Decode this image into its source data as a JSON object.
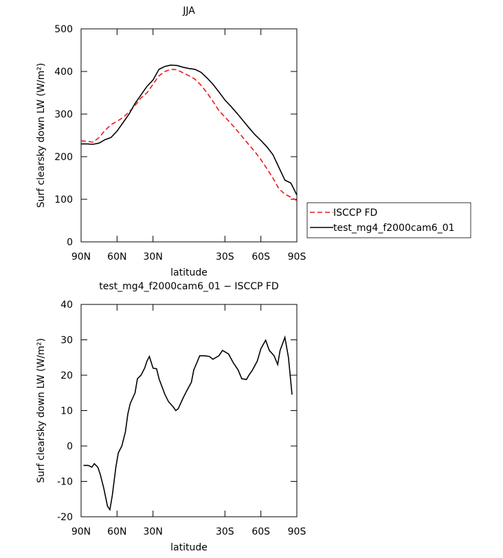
{
  "chart_data": [
    {
      "type": "line",
      "title": "JJA",
      "xlabel": "latitude",
      "ylabel": "Surf clearsky down LW (W/m²)",
      "xlim": [
        90,
        -90
      ],
      "ylim": [
        0,
        500
      ],
      "xticks": [
        {
          "value": 90,
          "label": "90N"
        },
        {
          "value": 60,
          "label": "60N"
        },
        {
          "value": 30,
          "label": "30N"
        },
        {
          "value": -30,
          "label": "30S"
        },
        {
          "value": -60,
          "label": "60S"
        },
        {
          "value": -90,
          "label": "90S"
        }
      ],
      "yticks": [
        0,
        100,
        200,
        300,
        400,
        500
      ],
      "legend": "right",
      "x": [
        90,
        85,
        80,
        75,
        70,
        65,
        60,
        55,
        50,
        45,
        40,
        35,
        30,
        25,
        20,
        15,
        10,
        5,
        0,
        -5,
        -10,
        -15,
        -20,
        -25,
        -30,
        -35,
        -40,
        -45,
        -50,
        -55,
        -60,
        -65,
        -70,
        -75,
        -80,
        -85,
        -90
      ],
      "series": [
        {
          "name": "ISCCP FD",
          "color": "#e8161b",
          "linestyle": "dashed",
          "values": [
            237,
            236,
            234,
            245,
            262,
            275,
            283,
            292,
            305,
            320,
            338,
            350,
            370,
            390,
            400,
            405,
            404,
            397,
            390,
            382,
            368,
            350,
            330,
            308,
            293,
            278,
            262,
            245,
            228,
            212,
            193,
            172,
            150,
            125,
            112,
            105,
            97
          ]
        },
        {
          "name": "test_mg4_f2000cam6_01",
          "color": "#000000",
          "linestyle": "solid",
          "values": [
            230,
            230,
            229,
            232,
            240,
            245,
            260,
            280,
            300,
            325,
            345,
            365,
            380,
            405,
            412,
            415,
            414,
            410,
            407,
            405,
            398,
            385,
            370,
            352,
            333,
            318,
            302,
            285,
            268,
            252,
            238,
            223,
            205,
            175,
            145,
            138,
            110
          ]
        }
      ]
    },
    {
      "type": "line",
      "title": "test_mg4_f2000cam6_01 − ISCCP FD",
      "xlabel": "latitude",
      "ylabel": "Surf clearsky down LW (W/m²)",
      "xlim": [
        90,
        -90
      ],
      "ylim": [
        -20,
        40
      ],
      "xticks": [
        {
          "value": 90,
          "label": "90N"
        },
        {
          "value": 60,
          "label": "60N"
        },
        {
          "value": 30,
          "label": "30N"
        },
        {
          "value": -30,
          "label": "30S"
        },
        {
          "value": -60,
          "label": "60S"
        },
        {
          "value": -90,
          "label": "90S"
        }
      ],
      "yticks": [
        -20,
        -10,
        0,
        10,
        20,
        30,
        40
      ],
      "x": [
        88,
        84,
        81,
        79,
        76,
        74,
        71,
        68,
        66,
        64,
        61,
        59,
        56,
        53,
        51,
        49,
        45,
        43,
        40,
        37,
        35,
        33,
        30,
        27,
        25,
        20,
        17,
        13,
        11,
        9,
        5,
        2,
        -2,
        -4,
        -9,
        -13,
        -17,
        -20,
        -25,
        -28,
        -33,
        -37,
        -41,
        -44,
        -48,
        -50,
        -53,
        -57,
        -60,
        -64,
        -67,
        -71,
        -74,
        -76,
        -80,
        -83,
        -86
      ],
      "series": [
        {
          "color": "#000000",
          "linestyle": "solid",
          "values": [
            -5.5,
            -5.5,
            -6,
            -5,
            -6,
            -8,
            -12,
            -17,
            -18,
            -14,
            -6,
            -2,
            0,
            4,
            9,
            12,
            15,
            19,
            20,
            22,
            24,
            25.3,
            22,
            21.8,
            19,
            14.5,
            12.5,
            11,
            10,
            10.5,
            13.5,
            15.5,
            18,
            21.5,
            25.5,
            25.5,
            25.3,
            24.5,
            25.5,
            27,
            26,
            23.5,
            21.5,
            19,
            18.8,
            20,
            21.5,
            24,
            27.5,
            29.9,
            27,
            25.5,
            23,
            27,
            30.7,
            25,
            14.5
          ]
        }
      ]
    }
  ]
}
